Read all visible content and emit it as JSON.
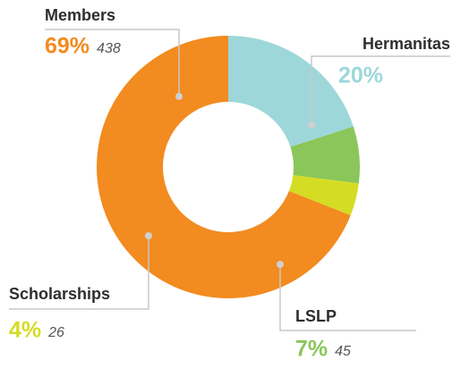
{
  "chart_data": {
    "type": "donut",
    "categories": [
      "Hermanitas",
      "LSLP",
      "Scholarships",
      "Members"
    ],
    "values": [
      20,
      7,
      4,
      69
    ],
    "value_labels": [
      "20%",
      "7%",
      "4%",
      "69%"
    ],
    "counts": [
      null,
      45,
      26,
      438
    ],
    "colors": [
      "#9dd7da",
      "#8bc65a",
      "#d5dc24",
      "#f28b20"
    ]
  }
}
